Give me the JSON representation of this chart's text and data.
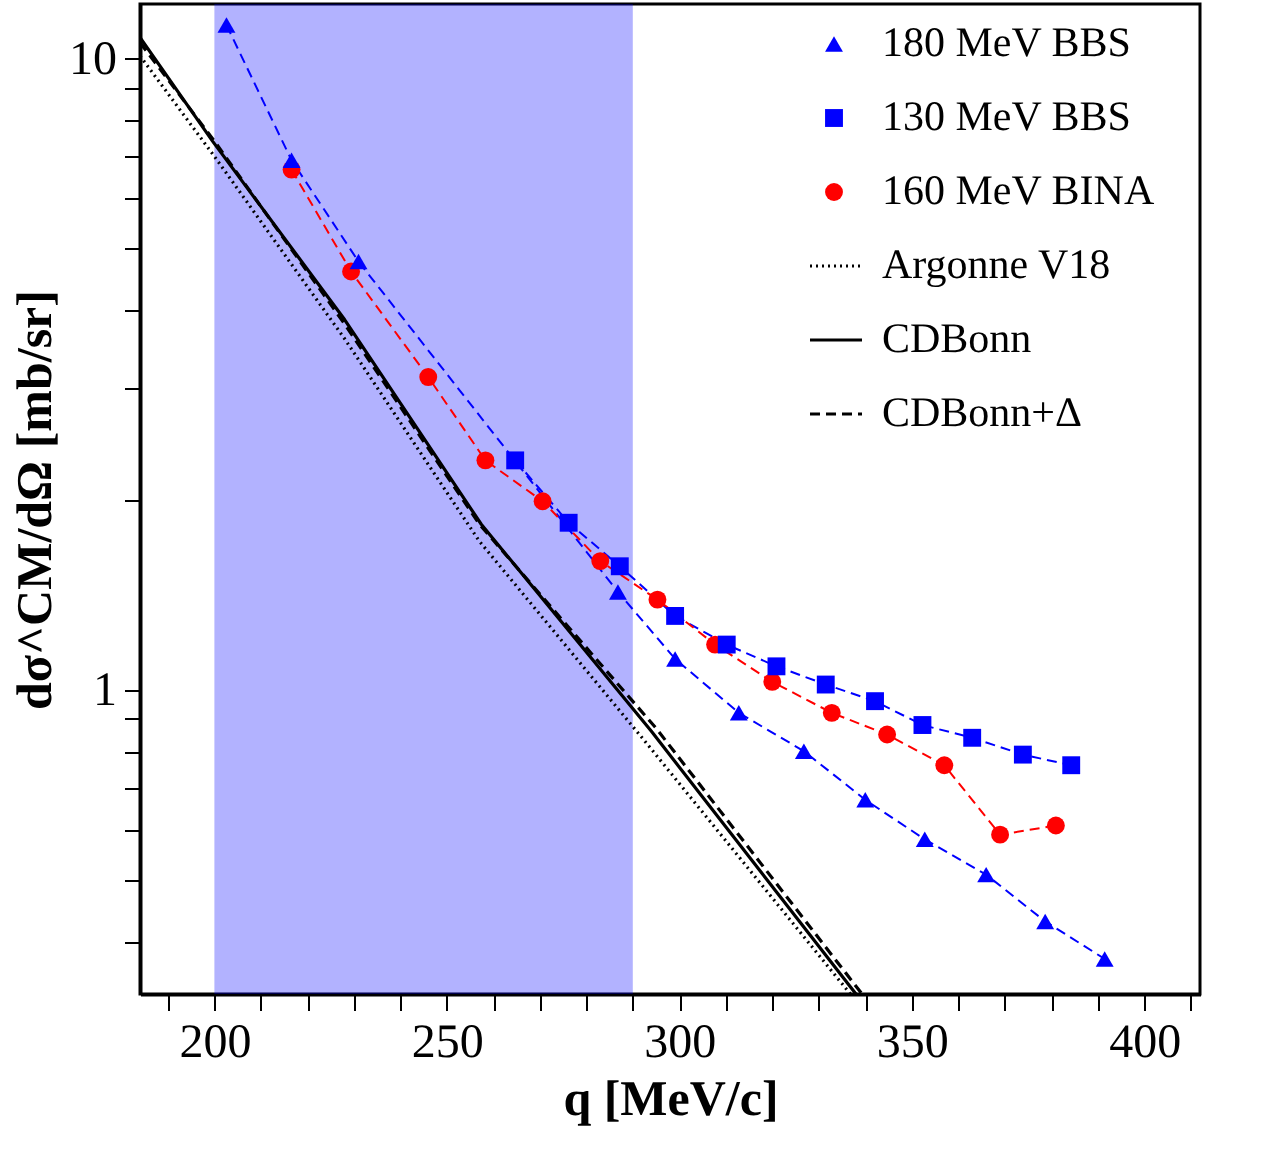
{
  "chart_data": {
    "type": "line",
    "xlabel": "q [MeV/c]",
    "ylabel": "dσ^CM/dΩ [mb/sr]",
    "log": "y",
    "xlim": [
      184,
      412
    ],
    "ylim": [
      0.33,
      12.2
    ],
    "xticks": [
      {
        "value": 190,
        "label": null
      },
      200,
      {
        "value": 210,
        "label": null
      },
      {
        "value": 220,
        "label": null
      },
      {
        "value": 230,
        "label": null
      },
      {
        "value": 240,
        "label": null
      },
      250,
      {
        "value": 260,
        "label": null
      },
      {
        "value": 270,
        "label": null
      },
      {
        "value": 280,
        "label": null
      },
      {
        "value": 290,
        "label": null
      },
      300,
      {
        "value": 310,
        "label": null
      },
      {
        "value": 320,
        "label": null
      },
      {
        "value": 330,
        "label": null
      },
      {
        "value": 340,
        "label": null
      },
      350,
      {
        "value": 360,
        "label": null
      },
      {
        "value": 370,
        "label": null
      },
      {
        "value": 380,
        "label": null
      },
      {
        "value": 390,
        "label": null
      },
      400,
      {
        "value": 410,
        "label": null
      }
    ],
    "yticks": [
      {
        "value": 0.4,
        "label": null
      },
      {
        "value": 0.5,
        "label": null
      },
      {
        "value": 0.6,
        "label": null
      },
      {
        "value": 0.7,
        "label": null
      },
      {
        "value": 0.8,
        "label": null
      },
      {
        "value": 0.9,
        "label": null
      },
      1,
      {
        "value": 2,
        "label": null
      },
      {
        "value": 3,
        "label": null
      },
      {
        "value": 4,
        "label": null
      },
      {
        "value": 5,
        "label": null
      },
      {
        "value": 6,
        "label": null
      },
      {
        "value": 7,
        "label": null
      },
      {
        "value": 8,
        "label": null
      },
      {
        "value": 9,
        "label": null
      },
      10
    ],
    "grid": false,
    "legend": "top right",
    "bands": [
      {
        "axis": "x",
        "from": 200,
        "to": 290,
        "color": "#0000ff"
      }
    ],
    "series": [
      {
        "name": "180 MeV BBS",
        "color": "#0000ff",
        "marker": "triangle",
        "line_style": "dashed",
        "x": [
          202.6,
          216.6,
          231,
          286.8,
          299.1,
          312.8,
          326.8,
          340,
          352.8,
          366,
          378.7,
          391.5
        ],
        "values": [
          11.3,
          6.9,
          4.77,
          1.43,
          1.12,
          0.92,
          0.8,
          0.67,
          0.58,
          0.51,
          0.43,
          0.375
        ]
      },
      {
        "name": "130 MeV BBS",
        "color": "#0000ff",
        "marker": "square",
        "line_style": "dashed",
        "x": [
          264.7,
          276.2,
          287.2,
          299.1,
          310.2,
          320.9,
          331.5,
          342.1,
          352.3,
          363,
          373.9,
          384.3
        ],
        "values": [
          2.31,
          1.84,
          1.57,
          1.31,
          1.18,
          1.09,
          1.02,
          0.96,
          0.88,
          0.84,
          0.79,
          0.76
        ]
      },
      {
        "name": "160 MeV BINA",
        "color": "#ff0000",
        "marker": "circle",
        "line_style": "dashed",
        "x": [
          216.6,
          229.4,
          246,
          258.3,
          270.6,
          283,
          295.3,
          307.7,
          320,
          332.8,
          344.7,
          357,
          369,
          381
        ],
        "values": [
          6.67,
          4.6,
          3.13,
          2.31,
          1.99,
          1.6,
          1.39,
          1.18,
          1.03,
          0.92,
          0.85,
          0.76,
          0.59,
          0.61
        ]
      },
      {
        "name": "Argonne V18",
        "color": "#000000",
        "marker": "none",
        "line_style": "dotted",
        "x": [
          184,
          200,
          228,
          257,
          292,
          336.8
        ],
        "values": [
          10.1,
          7.0,
          3.6,
          1.72,
          0.84,
          0.33
        ]
      },
      {
        "name": "CDBonn",
        "color": "#000000",
        "marker": "none",
        "line_style": "solid",
        "x": [
          184,
          199.6,
          228,
          257.4,
          294,
          338
        ],
        "values": [
          10.8,
          7.4,
          3.86,
          1.83,
          0.86,
          0.33
        ]
      },
      {
        "name": "CDBonn+Δ",
        "color": "#000000",
        "marker": "none",
        "line_style": "dashed",
        "x": [
          184,
          200,
          228,
          257,
          295,
          339.3
        ],
        "values": [
          10.6,
          7.4,
          3.8,
          1.83,
          0.87,
          0.33
        ]
      }
    ]
  }
}
